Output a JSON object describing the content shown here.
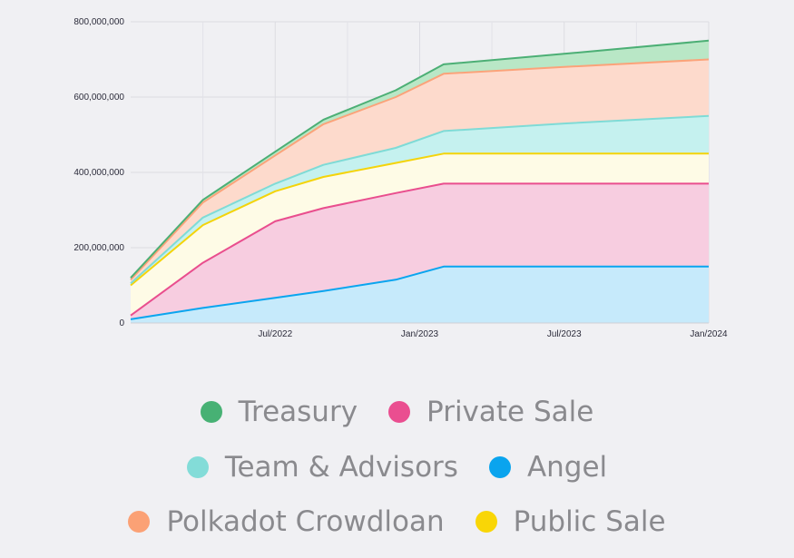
{
  "chart_data": {
    "type": "area",
    "stacked": true,
    "x": [
      2022.0,
      2022.25,
      2022.5,
      2022.667,
      2022.917,
      2023.083,
      2023.5,
      2024.0
    ],
    "x_ticks": [
      {
        "value": 2022.5,
        "label": "Jul/2022"
      },
      {
        "value": 2023.0,
        "label": "Jan/2023"
      },
      {
        "value": 2023.5,
        "label": "Jul/2023"
      },
      {
        "value": 2024.0,
        "label": "Jan/2024"
      }
    ],
    "xlim": [
      2022.0,
      2024.0
    ],
    "ylim": [
      0,
      800000000
    ],
    "y_ticks": [
      {
        "value": 0,
        "label": "0"
      },
      {
        "value": 200000000,
        "label": "200,000,000"
      },
      {
        "value": 400000000,
        "label": "400,000,000"
      },
      {
        "value": 600000000,
        "label": "600,000,000"
      },
      {
        "value": 800000000,
        "label": "800,000,000"
      }
    ],
    "grid": true,
    "legend_position": "bottom",
    "series": [
      {
        "name": "Angel",
        "color": "#0aa5ef",
        "fill": "#c6eafb",
        "values": [
          10000000,
          40000000,
          67000000,
          85000000,
          115000000,
          150000000,
          150000000,
          150000000
        ]
      },
      {
        "name": "Private Sale",
        "color": "#e94e8e",
        "fill": "#f7cde0",
        "values": [
          10000000,
          120000000,
          203000000,
          220000000,
          230000000,
          220000000,
          220000000,
          220000000
        ]
      },
      {
        "name": "Public Sale",
        "color": "#f4d40a",
        "fill": "#fefbe6",
        "values": [
          80000000,
          100000000,
          80000000,
          83000000,
          80000000,
          80000000,
          80000000,
          80000000
        ]
      },
      {
        "name": "Team & Advisors",
        "color": "#7fdbd6",
        "fill": "#c5f1ef",
        "values": [
          5000000,
          20000000,
          20000000,
          32000000,
          40000000,
          60000000,
          80000000,
          100000000
        ]
      },
      {
        "name": "Polkadot Crowdloan",
        "color": "#fba37a",
        "fill": "#fddacc",
        "values": [
          10000000,
          40000000,
          75000000,
          108000000,
          135000000,
          152000000,
          150000000,
          150000000
        ]
      },
      {
        "name": "Treasury",
        "color": "#4caf75",
        "fill": "#b9e7c6",
        "values": [
          5000000,
          7000000,
          10000000,
          12000000,
          18000000,
          25000000,
          35000000,
          50000000
        ]
      }
    ]
  },
  "legend": {
    "rows": [
      [
        {
          "name": "Treasury",
          "color": "#47b174"
        },
        {
          "name": "Private Sale",
          "color": "#ea4e90"
        }
      ],
      [
        {
          "name": "Team & Advisors",
          "color": "#83dcd8"
        },
        {
          "name": "Angel",
          "color": "#0aa4ee"
        }
      ],
      [
        {
          "name": "Polkadot Crowdloan",
          "color": "#fba175"
        },
        {
          "name": "Public Sale",
          "color": "#f9d606"
        }
      ]
    ]
  }
}
